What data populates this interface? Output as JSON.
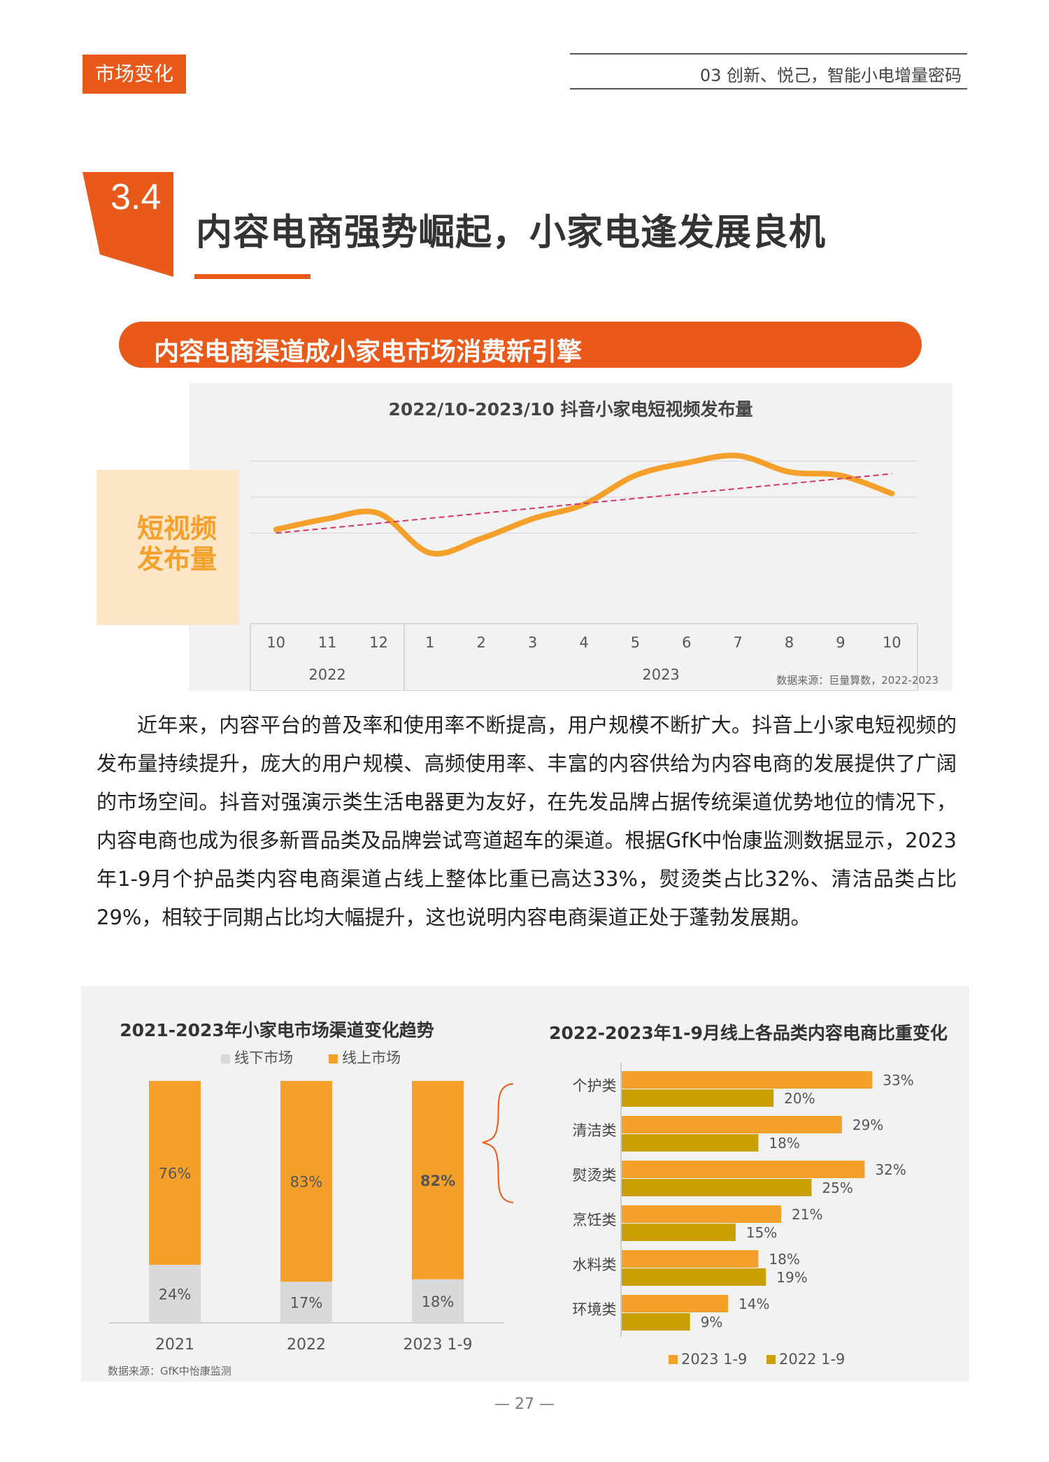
{
  "header": {
    "section_tag": "市场变化",
    "chapter": "03 创新、悦己，智能小电增量密码"
  },
  "section": {
    "number": "3.4",
    "title": "内容电商强势崛起，小家电逢发展良机",
    "banner": "内容电商渠道成小家电市场消费新引擎"
  },
  "side_tag": {
    "line1": "短视频",
    "line2": "发布量"
  },
  "paragraph": "近年来，内容平台的普及率和使用率不断提高，用户规模不断扩大。抖音上小家电短视频的发布量持续提升，庞大的用户规模、高频使用率、丰富的内容供给为内容电商的发展提供了广阔的市场空间。抖音对强演示类生活电器更为友好，在先发品牌占据传统渠道优势地位的情况下，内容电商也成为很多新晋品类及品牌尝试弯道超车的渠道。根据GfK中怡康监测数据显示，2023年1-9月个护品类内容电商渠道占线上整体比重已高达33%，熨烫类占比32%、清洁品类占比29%，相较于同期占比均大幅提升，这也说明内容电商渠道正处于蓬勃发展期。",
  "page_number": "— 27 —",
  "colors": {
    "accent": "#e8591a",
    "orange": "#f5a02a",
    "gold": "#c9a000",
    "grey": "#d9d9d9",
    "trend": "#d6336c"
  },
  "chart_data": [
    {
      "type": "line",
      "title": "2022/10-2023/10 抖音小家电短视频发布量",
      "categories": [
        "10",
        "11",
        "12",
        "1",
        "2",
        "3",
        "4",
        "5",
        "6",
        "7",
        "8",
        "9",
        "10"
      ],
      "year_groups": [
        {
          "label": "2022",
          "span": 3
        },
        {
          "label": "2023",
          "span": 10
        }
      ],
      "series": [
        {
          "values": [
            2.2,
            2.8,
            3.1,
            0.9,
            1.7,
            2.8,
            3.6,
            5.2,
            5.9,
            6.3,
            5.4,
            5.2,
            4.2
          ]
        }
      ],
      "trendline": {
        "start": 2.0,
        "end": 5.3
      },
      "ylim": [
        0,
        8
      ],
      "grid": true,
      "source": "数据来源：巨量算数，2022-2023"
    },
    {
      "type": "bar",
      "stacked": true,
      "title": "2021-2023年小家电市场渠道变化趋势",
      "categories": [
        "2021",
        "2022",
        "2023 1-9"
      ],
      "series": [
        {
          "name": "线下市场",
          "values": [
            24,
            17,
            18
          ],
          "labels": [
            "24%",
            "17%",
            "18%"
          ]
        },
        {
          "name": "线上市场",
          "values": [
            76,
            83,
            82
          ],
          "labels": [
            "76%",
            "83%",
            "82%"
          ]
        }
      ],
      "ylim": [
        0,
        100
      ],
      "source": "数据来源：GfK中怡康监测"
    },
    {
      "type": "bar",
      "orientation": "horizontal",
      "title": "2022-2023年1-9月线上各品类内容电商比重变化",
      "categories": [
        "个护类",
        "清洁类",
        "熨烫类",
        "烹饪类",
        "水料类",
        "环境类"
      ],
      "series": [
        {
          "name": "2023 1-9",
          "values": [
            33,
            29,
            32,
            21,
            18,
            14
          ],
          "labels": [
            "33%",
            "29%",
            "32%",
            "21%",
            "18%",
            "14%"
          ]
        },
        {
          "name": "2022 1-9",
          "values": [
            20,
            18,
            25,
            15,
            19,
            9
          ],
          "labels": [
            "20%",
            "18%",
            "25%",
            "15%",
            "19%",
            "9%"
          ]
        }
      ],
      "xlim": [
        0,
        35
      ]
    }
  ]
}
